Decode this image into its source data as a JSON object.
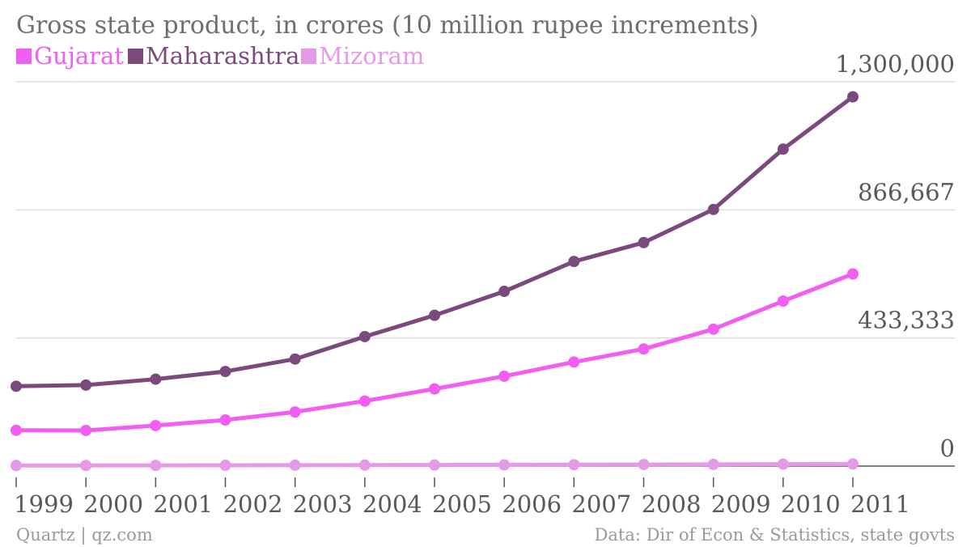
{
  "chart_data": {
    "type": "line",
    "title": "Gross state product, in crores (10 million rupee increments)",
    "x": [
      "1999",
      "2000",
      "2001",
      "2002",
      "2003",
      "2004",
      "2005",
      "2006",
      "2007",
      "2008",
      "2009",
      "2010",
      "2011"
    ],
    "series": [
      {
        "name": "Gujarat",
        "color": "#f25ef2",
        "values": [
          121000,
          120500,
          137000,
          156000,
          183000,
          220000,
          261000,
          304000,
          352000,
          396000,
          463000,
          558000,
          650000
        ]
      },
      {
        "name": "Maharashtra",
        "color": "#7b4a7d",
        "values": [
          270000,
          274000,
          294000,
          320000,
          362000,
          438000,
          510000,
          591000,
          692000,
          756000,
          868000,
          1072000,
          1249000
        ]
      },
      {
        "name": "Mizoram",
        "color": "#e49ae6",
        "values": [
          2000,
          2200,
          2400,
          2700,
          3000,
          3300,
          3700,
          4100,
          4600,
          5200,
          5800,
          6500,
          7200
        ]
      }
    ],
    "yticks": [
      0,
      433333,
      866667,
      1300000
    ],
    "ytick_labels": [
      "0",
      "433,333",
      "866,667",
      "1,300,000"
    ],
    "ylim": [
      0,
      1300000
    ],
    "xlabel": "",
    "ylabel": "",
    "grid": true,
    "legend_position": "top-left"
  },
  "footer": {
    "source_left": "Quartz | qz.com",
    "source_right": "Data: Dir of Econ & Statistics, state govts"
  },
  "colors": {
    "title": "#6e6e6e",
    "tick_text": "#595959",
    "grid": "#dddddd",
    "axis": "#555555",
    "footer": "#9a9a9a"
  }
}
